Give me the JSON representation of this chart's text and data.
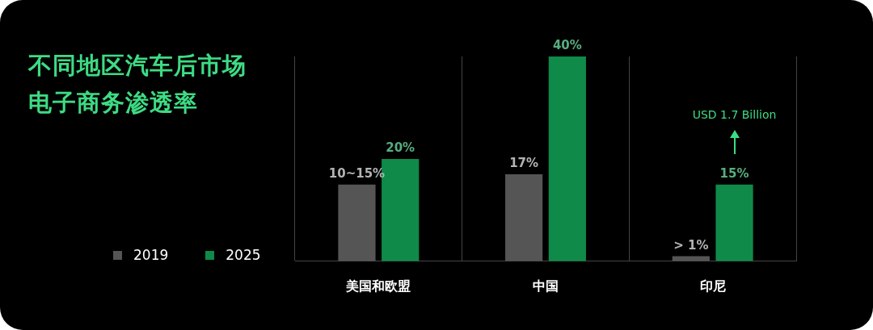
{
  "chart_data": {
    "type": "bar",
    "title": "不同地区汽车后市场电子商务渗透率",
    "categories": [
      "美国和欧盟",
      "中国",
      "印尼"
    ],
    "series": [
      {
        "name": "2019",
        "color": "#555555",
        "values": [
          15,
          17,
          1
        ],
        "value_labels": [
          "10~15%",
          "17%",
          "> 1%"
        ]
      },
      {
        "name": "2025",
        "color": "#0f8a48",
        "values": [
          20,
          40,
          15
        ],
        "value_labels": [
          "20%",
          "40%",
          "15%"
        ]
      }
    ],
    "annotations": [
      "USD 1.7 Billion"
    ],
    "grid": "x",
    "legend": "bottom left",
    "tick_labels": "x"
  }
}
